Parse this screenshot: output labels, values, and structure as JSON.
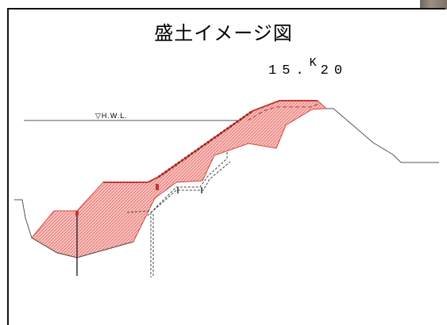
{
  "title": "盛土イメージ図",
  "station": {
    "main": "15.",
    "k": "K",
    "rest": "20"
  },
  "hwl_label": "▽H.W.L.",
  "colors": {
    "fill": "#f3b3b0",
    "fill_hatch": "#e8544f",
    "outline": "#d8453f",
    "ground": "#555555",
    "structure": "#333333"
  }
}
